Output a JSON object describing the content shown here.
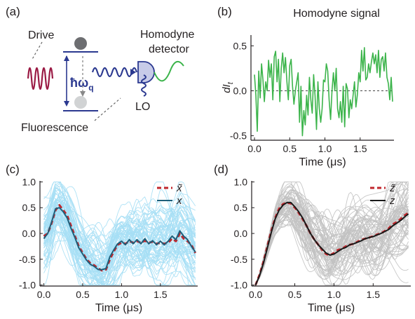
{
  "panels": {
    "a": {
      "label": "(a)",
      "drive": "Drive",
      "hbar_omega": "ħω",
      "omega_sub": "q",
      "homodyne_line1": "Homodyne",
      "homodyne_line2": "detector",
      "fluorescence": "Fluorescence",
      "lo": "LO"
    },
    "b": {
      "label": "(b)"
    },
    "c": {
      "label": "(c)"
    },
    "d": {
      "label": "(d)"
    }
  },
  "colors": {
    "homodyne": "#3cb44b",
    "light_blue": "#a6dff5",
    "dark_teal": "#1f5f7a",
    "red_dash": "#c0272d",
    "gray": "#c2c2c2",
    "black": "#1a1a1a",
    "drive": "#9b1b45",
    "photon": "#2b3990",
    "detector": "#c7cbe8"
  },
  "chart_data": [
    {
      "panel": "b",
      "type": "line",
      "title": "Homodyne signal",
      "xlabel": "Time (μs)",
      "ylabel": "dI_t",
      "xlim": [
        -0.05,
        1.98
      ],
      "ylim": [
        -0.55,
        0.62
      ],
      "xticks": [
        0.0,
        0.5,
        1.0,
        1.5
      ],
      "xtick_labels": [
        "0.0",
        "0.5",
        "1.0",
        "1.5"
      ],
      "yticks": [
        0.5,
        0.0,
        -0.5
      ],
      "ytick_labels": [
        "0.5",
        "0.0",
        "-0.5"
      ],
      "zero_line": "dashed",
      "series": [
        {
          "color": "#3cb44b",
          "x": [
            0.0,
            0.02,
            0.04,
            0.06,
            0.08,
            0.1,
            0.12,
            0.14,
            0.16,
            0.18,
            0.2,
            0.22,
            0.24,
            0.26,
            0.28,
            0.3,
            0.32,
            0.34,
            0.36,
            0.38,
            0.4,
            0.42,
            0.44,
            0.46,
            0.48,
            0.5,
            0.52,
            0.54,
            0.56,
            0.58,
            0.6,
            0.62,
            0.64,
            0.66,
            0.68,
            0.7,
            0.72,
            0.74,
            0.76,
            0.78,
            0.8,
            0.82,
            0.84,
            0.86,
            0.88,
            0.9,
            0.92,
            0.94,
            0.96,
            0.98,
            1.0,
            1.02,
            1.04,
            1.06,
            1.08,
            1.1,
            1.12,
            1.14,
            1.16,
            1.18,
            1.2,
            1.22,
            1.24,
            1.26,
            1.28,
            1.3,
            1.32,
            1.34,
            1.36,
            1.38,
            1.4,
            1.42,
            1.44,
            1.46,
            1.48,
            1.5,
            1.52,
            1.54,
            1.56,
            1.58,
            1.6,
            1.62,
            1.64,
            1.66,
            1.68,
            1.7,
            1.72,
            1.74,
            1.76,
            1.78,
            1.8,
            1.82,
            1.84,
            1.86,
            1.88,
            1.9,
            1.92,
            1.94,
            1.96
          ],
          "values": [
            0.18,
            -0.05,
            -0.45,
            0.22,
            -0.08,
            0.3,
            0.12,
            -0.12,
            0.1,
            0.0,
            0.34,
            0.15,
            0.3,
            -0.1,
            0.38,
            0.44,
            0.1,
            0.35,
            -0.12,
            0.25,
            0.42,
            0.2,
            0.37,
            0.1,
            -0.1,
            0.28,
            0.35,
            0.05,
            -0.15,
            0.0,
            0.1,
            0.2,
            -0.35,
            0.05,
            -0.5,
            -0.22,
            -0.38,
            -0.05,
            -0.27,
            0.15,
            -0.1,
            -0.25,
            0.18,
            -0.05,
            -0.43,
            0.1,
            -0.2,
            -0.35,
            -0.2,
            0.12,
            0.1,
            0.3,
            0.22,
            -0.1,
            -0.32,
            0.0,
            0.2,
            0.0,
            0.25,
            -0.2,
            -0.3,
            -0.12,
            -0.35,
            0.05,
            -0.4,
            0.08,
            0.02,
            -0.3,
            -0.1,
            -0.2,
            -0.05,
            0.1,
            -0.18,
            -0.05,
            0.2,
            0.1,
            0.45,
            0.22,
            0.48,
            0.12,
            0.15,
            0.3,
            0.2,
            0.32,
            0.42,
            0.3,
            0.4,
            0.2,
            0.45,
            0.15,
            0.35,
            0.38,
            0.22,
            0.42,
            0.15,
            0.08,
            -0.1,
            0.15,
            -0.12
          ]
        }
      ]
    },
    {
      "panel": "c",
      "type": "line",
      "xlabel": "Time (μs)",
      "ylabel": "",
      "xlim": [
        -0.05,
        1.98
      ],
      "ylim": [
        -1.02,
        1.02
      ],
      "xticks": [
        0.0,
        0.5,
        1.0,
        1.5
      ],
      "xtick_labels": [
        "0.0",
        "0.5",
        "1.0",
        "1.5"
      ],
      "yticks": [
        1.0,
        0.5,
        0.0,
        -0.5,
        -1.0
      ],
      "ytick_labels": [
        "1.0",
        "0.5",
        "0.0",
        "-0.5",
        "-1.0"
      ],
      "legend": "top-right",
      "legend_entries": [
        "x̃",
        "x"
      ],
      "trajectories": {
        "count": 70,
        "color": "#a6dff5"
      },
      "x": [
        0.0,
        0.05,
        0.1,
        0.15,
        0.2,
        0.25,
        0.3,
        0.35,
        0.4,
        0.45,
        0.5,
        0.55,
        0.6,
        0.65,
        0.7,
        0.75,
        0.8,
        0.85,
        0.9,
        0.95,
        1.0,
        1.05,
        1.1,
        1.15,
        1.2,
        1.25,
        1.3,
        1.35,
        1.4,
        1.45,
        1.5,
        1.55,
        1.6,
        1.65,
        1.7,
        1.75,
        1.8,
        1.85,
        1.9,
        1.95
      ],
      "series": [
        {
          "name": "x̃",
          "style": "dashed",
          "color": "#c0272d",
          "values": [
            -0.05,
            0.0,
            0.2,
            0.45,
            0.55,
            0.45,
            0.35,
            0.15,
            -0.05,
            -0.25,
            -0.38,
            -0.5,
            -0.58,
            -0.62,
            -0.68,
            -0.72,
            -0.7,
            -0.5,
            -0.35,
            -0.22,
            -0.18,
            -0.2,
            -0.15,
            -0.18,
            -0.15,
            -0.18,
            -0.14,
            -0.18,
            -0.16,
            -0.2,
            -0.18,
            -0.2,
            -0.18,
            -0.1,
            -0.15,
            0.0,
            -0.1,
            -0.15,
            -0.22,
            -0.38
          ]
        },
        {
          "name": "x",
          "style": "solid",
          "color": "#1f5f7a",
          "values": [
            -0.1,
            0.0,
            0.22,
            0.48,
            0.5,
            0.42,
            0.3,
            0.1,
            -0.08,
            -0.28,
            -0.4,
            -0.52,
            -0.6,
            -0.64,
            -0.7,
            -0.7,
            -0.68,
            -0.45,
            -0.32,
            -0.2,
            -0.15,
            -0.22,
            -0.12,
            -0.2,
            -0.12,
            -0.2,
            -0.1,
            -0.2,
            -0.14,
            -0.22,
            -0.15,
            -0.22,
            -0.15,
            -0.05,
            -0.12,
            0.05,
            -0.05,
            -0.12,
            -0.25,
            -0.36
          ]
        }
      ]
    },
    {
      "panel": "d",
      "type": "line",
      "xlabel": "Time (μs)",
      "ylabel": "",
      "xlim": [
        -0.05,
        1.98
      ],
      "ylim": [
        -1.02,
        1.02
      ],
      "xticks": [
        0.0,
        0.5,
        1.0,
        1.5
      ],
      "xtick_labels": [
        "0.0",
        "0.5",
        "1.0",
        "1.5"
      ],
      "yticks": [
        1.0,
        0.5,
        0.0,
        -0.5,
        -1.0
      ],
      "ytick_labels": [
        "1.0",
        "0.5",
        "0.0",
        "-0.5",
        "-1.0"
      ],
      "legend": "top-right",
      "legend_entries": [
        "z̃",
        "z"
      ],
      "trajectories": {
        "count": 70,
        "color": "#c2c2c2"
      },
      "x": [
        0.0,
        0.05,
        0.1,
        0.15,
        0.2,
        0.25,
        0.3,
        0.35,
        0.4,
        0.45,
        0.5,
        0.55,
        0.6,
        0.65,
        0.7,
        0.75,
        0.8,
        0.85,
        0.9,
        0.95,
        1.0,
        1.05,
        1.1,
        1.15,
        1.2,
        1.25,
        1.3,
        1.35,
        1.4,
        1.45,
        1.5,
        1.55,
        1.6,
        1.65,
        1.7,
        1.75,
        1.8,
        1.85,
        1.9,
        1.95
      ],
      "series": [
        {
          "name": "z̃",
          "style": "dashed",
          "color": "#c0272d",
          "values": [
            -1.0,
            -0.8,
            -0.55,
            -0.25,
            0.05,
            0.3,
            0.48,
            0.57,
            0.6,
            0.58,
            0.5,
            0.4,
            0.28,
            0.15,
            0.0,
            -0.12,
            -0.22,
            -0.32,
            -0.4,
            -0.42,
            -0.38,
            -0.32,
            -0.3,
            -0.25,
            -0.22,
            -0.2,
            -0.16,
            -0.12,
            -0.1,
            -0.08,
            -0.05,
            -0.02,
            0.0,
            0.05,
            0.1,
            0.18,
            0.22,
            0.28,
            0.35,
            0.4
          ]
        },
        {
          "name": "z",
          "style": "solid",
          "color": "#1a1a1a",
          "values": [
            -1.0,
            -0.82,
            -0.58,
            -0.28,
            0.02,
            0.28,
            0.45,
            0.55,
            0.6,
            0.6,
            0.52,
            0.42,
            0.3,
            0.15,
            0.0,
            -0.12,
            -0.22,
            -0.3,
            -0.38,
            -0.42,
            -0.4,
            -0.35,
            -0.3,
            -0.27,
            -0.22,
            -0.2,
            -0.17,
            -0.14,
            -0.1,
            -0.08,
            -0.06,
            -0.03,
            0.0,
            0.04,
            0.08,
            0.15,
            0.2,
            0.25,
            0.32,
            0.38
          ]
        }
      ]
    }
  ]
}
